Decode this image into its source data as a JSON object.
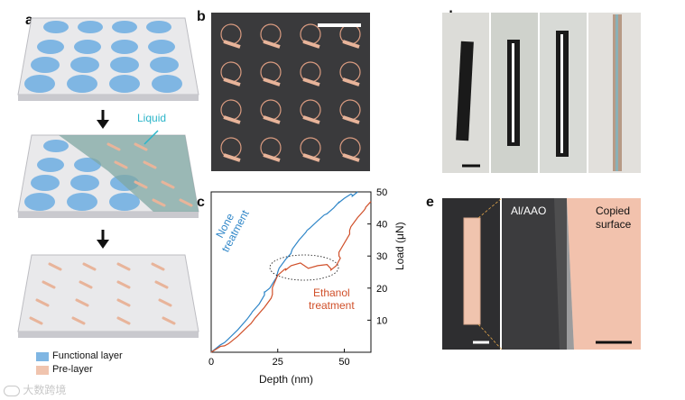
{
  "panels": {
    "a": {
      "letter": "a",
      "liquid_label": "Liquid",
      "legend": [
        {
          "label": "Functional layer",
          "color": "#7fb6e3"
        },
        {
          "label": "Pre-layer",
          "color": "#f0c4ae"
        }
      ]
    },
    "b": {
      "letter": "b"
    },
    "c": {
      "letter": "c"
    },
    "d": {
      "letter": "d"
    },
    "e": {
      "letter": "e",
      "label_left": "Al/AAO",
      "label_right_1": "Copied",
      "label_right_2": "surface"
    }
  },
  "chart_data": {
    "type": "line",
    "xlabel": "Depth (nm)",
    "ylabel": "Load (μN)",
    "x_ticks": [
      "0",
      "25",
      "50"
    ],
    "y_ticks": [
      "10",
      "20",
      "30",
      "40",
      "50"
    ],
    "xlim": [
      0,
      60
    ],
    "ylim": [
      0,
      50
    ],
    "series": [
      {
        "name_line1": "None",
        "name_line2": "treatment",
        "color": "#2f86c8",
        "x": [
          0,
          5,
          10,
          15,
          18,
          20,
          22,
          25,
          28,
          30,
          33,
          36,
          40,
          43,
          46,
          48,
          50,
          53,
          55
        ],
        "y": [
          0,
          3,
          7,
          12,
          15,
          19,
          20,
          25,
          29,
          31,
          35,
          38,
          41,
          43,
          45,
          47,
          48,
          49,
          50
        ]
      },
      {
        "name_line1": "Ethanol",
        "name_line2": "treatment",
        "color": "#d0502a",
        "x": [
          0,
          5,
          10,
          15,
          20,
          23,
          25,
          28,
          30,
          35,
          40,
          45,
          47,
          48,
          50,
          52,
          55,
          58,
          60
        ],
        "y": [
          0,
          2,
          5,
          9,
          14,
          18,
          24,
          26,
          27,
          27,
          27,
          26,
          27,
          30,
          34,
          38,
          42,
          45,
          47
        ]
      }
    ],
    "annotation": "dotted ellipse around plateau"
  },
  "watermark": "大数跨境"
}
